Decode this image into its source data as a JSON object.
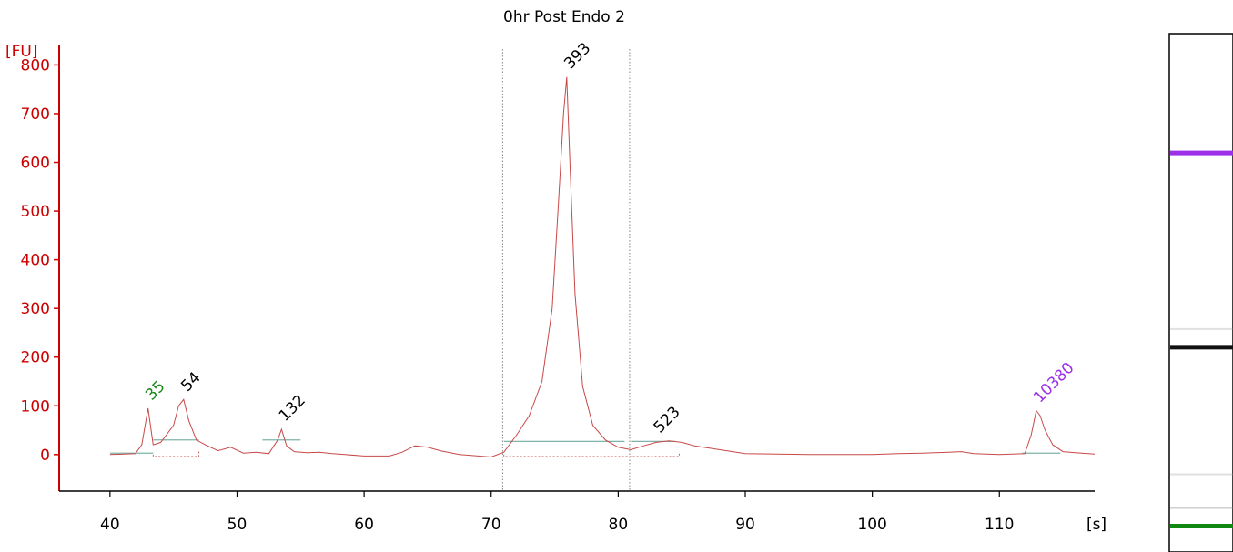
{
  "chart_data": {
    "type": "line",
    "title": "0hr Post Endo 2",
    "ylabel": "[FU]",
    "xlabel": "[s]",
    "xlim": [
      36,
      117.5
    ],
    "ylim": [
      -75,
      840
    ],
    "x_ticks": [
      40,
      50,
      60,
      70,
      80,
      90,
      100,
      110
    ],
    "y_ticks": [
      0,
      100,
      200,
      300,
      400,
      500,
      600,
      700,
      800
    ],
    "grid": false,
    "colors": {
      "axis_y": "#cc0000",
      "trace": "#c84848",
      "baseline": "#7fb3a8",
      "marker_lower": "#1a8a1a",
      "marker_upper": "#9b30e6"
    },
    "series": [
      {
        "x": [
          40,
          42,
          42.5,
          43.0,
          43.4,
          44,
          45,
          45.4,
          45.8,
          46.2,
          46.8,
          47.5,
          48.5,
          49.5,
          50.5,
          51.5,
          52.5,
          53.2,
          53.5,
          53.9,
          54.5,
          55.5,
          56.5,
          57.5,
          58.5,
          60,
          62,
          63,
          64,
          65,
          66,
          67.5,
          69,
          70,
          71,
          72,
          73,
          74,
          74.8,
          75.3,
          75.7,
          75.95,
          76.2,
          76.6,
          77.2,
          78,
          79,
          80,
          81,
          82,
          83,
          84,
          85,
          86,
          88,
          90,
          95,
          100,
          102,
          104,
          106,
          107,
          108,
          110,
          112,
          112.5,
          112.9,
          113.2,
          113.6,
          114.2,
          115,
          116,
          117,
          117.5
        ],
        "y": [
          0,
          2,
          20,
          95,
          20,
          25,
          60,
          100,
          113,
          70,
          30,
          20,
          8,
          15,
          3,
          5,
          2,
          30,
          52,
          18,
          6,
          4,
          5,
          2,
          0,
          -3,
          -3,
          5,
          18,
          15,
          8,
          0,
          -3,
          -5,
          5,
          40,
          80,
          150,
          300,
          520,
          700,
          775,
          600,
          330,
          140,
          60,
          30,
          15,
          10,
          18,
          25,
          28,
          25,
          18,
          10,
          2,
          0,
          0,
          2,
          3,
          5,
          6,
          2,
          0,
          2,
          40,
          90,
          80,
          50,
          20,
          6,
          4,
          2,
          1
        ]
      }
    ],
    "peaks": [
      {
        "label": "35",
        "x": 43.0,
        "y": 95,
        "color": "#1a8a1a"
      },
      {
        "label": "54",
        "x": 45.8,
        "y": 113
      },
      {
        "label": "132",
        "x": 53.5,
        "y": 52
      },
      {
        "label": "393",
        "x": 75.95,
        "y": 775
      },
      {
        "label": "523",
        "x": 83.0,
        "y": 28
      },
      {
        "label": "10380",
        "x": 112.9,
        "y": 90,
        "color": "#9b30e6"
      }
    ],
    "region_lines": [
      70.9,
      80.9
    ],
    "peak_baselines": [
      {
        "x0": 40,
        "x1": 43.4,
        "y": 3
      },
      {
        "x0": 43.4,
        "x1": 47.0,
        "y": 30
      },
      {
        "x0": 52.0,
        "x1": 55.0,
        "y": 30
      },
      {
        "x0": 71.0,
        "x1": 80.5,
        "y": 27
      },
      {
        "x0": 81.0,
        "x1": 84.5,
        "y": 27
      },
      {
        "x0": 111.8,
        "x1": 114.8,
        "y": 3
      }
    ],
    "gel_bands": [
      {
        "position": 0.23,
        "color": "#9b30e6",
        "strength": 1.0
      },
      {
        "position": 0.605,
        "color": "#111111",
        "strength": 1.0
      },
      {
        "position": 0.57,
        "color": "#888888",
        "strength": 0.25
      },
      {
        "position": 0.85,
        "color": "#999999",
        "strength": 0.3
      },
      {
        "position": 0.915,
        "color": "#777777",
        "strength": 0.35
      },
      {
        "position": 0.95,
        "color": "#118811",
        "strength": 1.0
      }
    ]
  }
}
